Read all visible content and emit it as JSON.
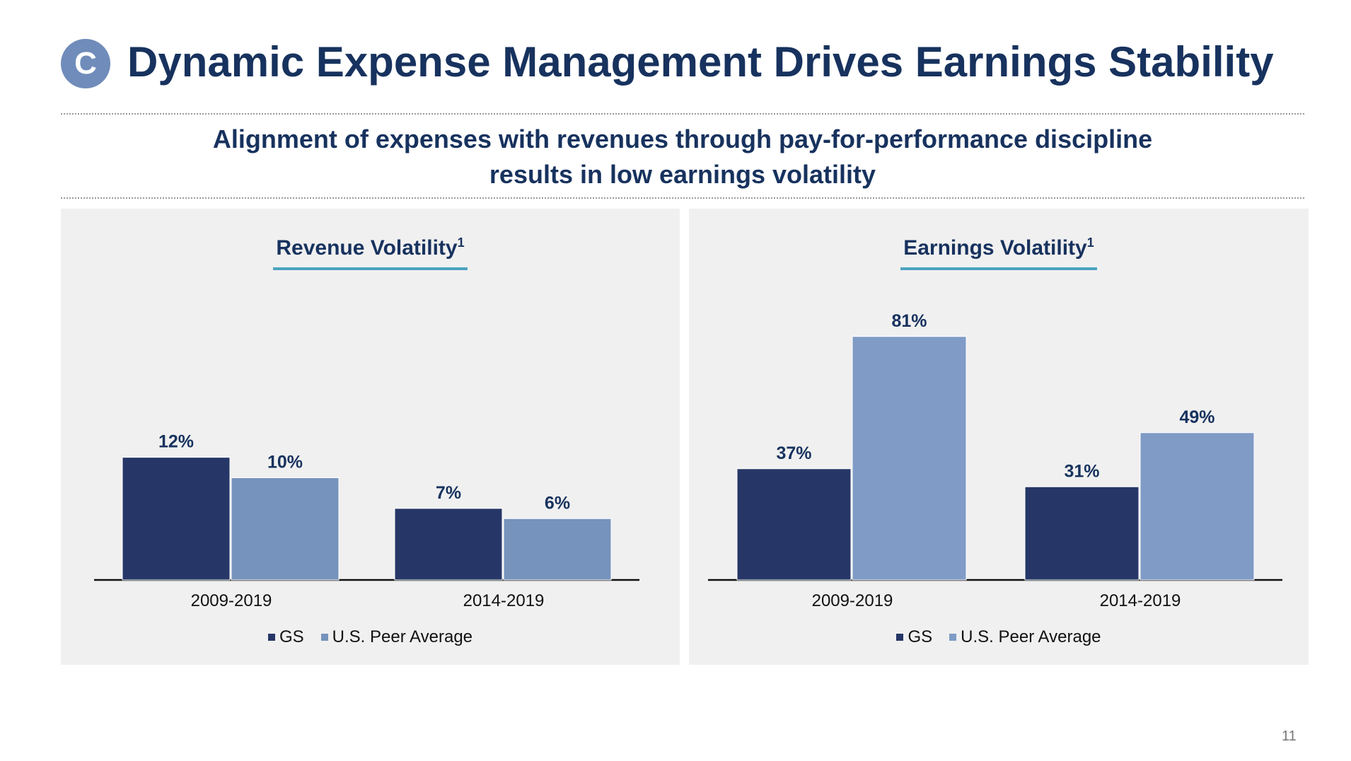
{
  "header": {
    "badge": "C",
    "title": "Dynamic Expense Management Drives Earnings Stability",
    "subtitle_line1": "Alignment of expenses with revenues through pay-for-performance discipline",
    "subtitle_line2": "results in low earnings volatility"
  },
  "page_number": "11",
  "colors": {
    "gs": "#263767",
    "peer_left": "#7693bd",
    "peer_right": "#7f9bc6",
    "title": "#17325e",
    "accent_underline": "#4ba3bf"
  },
  "chart_data": [
    {
      "type": "bar",
      "title": "Revenue Volatility",
      "title_superscript": "1",
      "categories": [
        "2009-2019",
        "2014-2019"
      ],
      "series": [
        {
          "name": "GS",
          "values": [
            12,
            7
          ],
          "labels": [
            "12%",
            "7%"
          ]
        },
        {
          "name": "U.S. Peer Average",
          "values": [
            10,
            6
          ],
          "labels": [
            "10%",
            "6%"
          ]
        }
      ],
      "ylim": [
        0,
        40
      ],
      "legend": "bottom",
      "grid": false
    },
    {
      "type": "bar",
      "title": "Earnings Volatility",
      "title_superscript": "1",
      "categories": [
        "2009-2019",
        "2014-2019"
      ],
      "series": [
        {
          "name": "GS",
          "values": [
            37,
            31
          ],
          "labels": [
            "37%",
            "31%"
          ]
        },
        {
          "name": "U.S. Peer Average",
          "values": [
            81,
            49
          ],
          "labels": [
            "81%",
            "49%"
          ]
        }
      ],
      "ylim": [
        0,
        100
      ],
      "legend": "bottom",
      "grid": false
    }
  ]
}
